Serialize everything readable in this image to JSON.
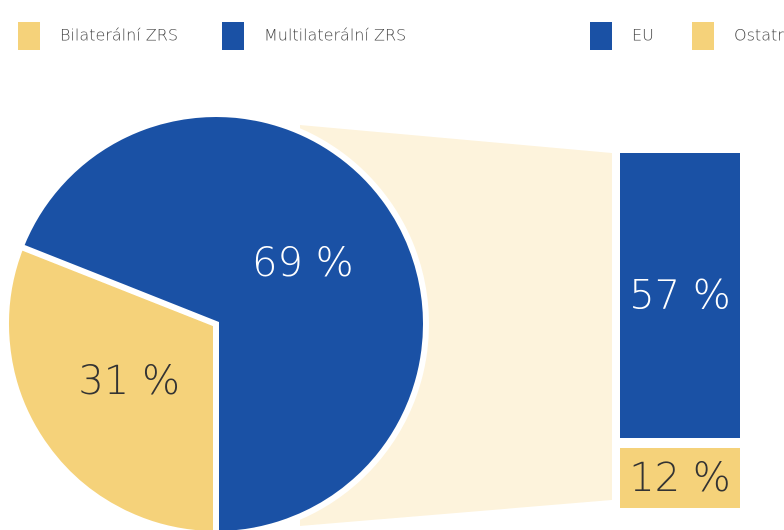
{
  "chart_data": {
    "type": "pie",
    "categories": [
      "Bilaterální ZRS",
      "Multilaterální ZRS"
    ],
    "values": [
      31,
      69
    ],
    "value_labels": [
      "31 %",
      "69 %"
    ],
    "colors": [
      "#f5d27a",
      "#1a51a5"
    ],
    "breakdown": {
      "type": "bar",
      "categories": [
        "EU",
        "Ostatní"
      ],
      "values": [
        57,
        12
      ],
      "value_labels": [
        "57 %",
        "12 %"
      ],
      "colors": [
        "#1a51a5",
        "#f5d27a"
      ]
    }
  }
}
